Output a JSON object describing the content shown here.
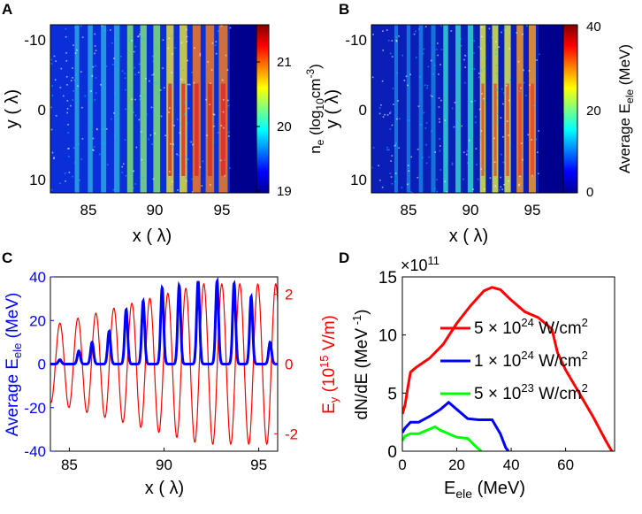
{
  "panels": {
    "a": {
      "letter": "A",
      "xlabel": "x ( λ)",
      "ylabel": "y ( λ)",
      "xticks": [
        "85",
        "90",
        "95"
      ],
      "yticks": [
        "-10",
        "0",
        "10"
      ],
      "colorbar": {
        "ticks": [
          "19",
          "20",
          "21"
        ],
        "label_main": "n",
        "label_sub": "e",
        "label_rest": " (log",
        "label_sub2": "10",
        "label_unit": "cm",
        "label_sup": "-3",
        "label_end": ")"
      }
    },
    "b": {
      "letter": "B",
      "xlabel": "x ( λ)",
      "ylabel": "y ( λ)",
      "xticks": [
        "85",
        "90",
        "95"
      ],
      "yticks": [
        "-10",
        "0",
        "10"
      ],
      "colorbar": {
        "ticks": [
          "0",
          "20",
          "40"
        ],
        "label_main": "Average E",
        "label_sub": "ele",
        "label_end": " (MeV)"
      }
    },
    "c": {
      "letter": "C",
      "xlabel": "x ( λ)",
      "ylabel_left_main": "Average E",
      "ylabel_left_sub": "ele",
      "ylabel_left_end": " (MeV)",
      "ylabel_right_main": "E",
      "ylabel_right_sub": "y",
      "ylabel_right_mid": " (10",
      "ylabel_right_sup": "15",
      "ylabel_right_end": " V/m)",
      "left_color": "#0000ff",
      "right_color": "#ff0000"
    },
    "d": {
      "letter": "D",
      "xlabel_main": "E",
      "xlabel_sub": "ele",
      "xlabel_end": " (MeV)",
      "ylabel_main": "dN/dE (MeV",
      "ylabel_sup": " -1",
      "ylabel_end": ")",
      "exponent_base": "×10",
      "exponent_power": "11"
    }
  },
  "chart_data": [
    {
      "id": "A",
      "type": "heatmap",
      "title": "",
      "xlabel": "x (λ)",
      "ylabel": "y (λ)",
      "xlim": [
        82,
        97.5
      ],
      "ylim": [
        -13,
        13
      ],
      "colorbar": {
        "label": "n_e (log10 cm^-3)",
        "range": [
          19,
          21.5
        ],
        "colormap": "jet"
      },
      "description_values": {
        "stripe_x": [
          84,
          85,
          86,
          87,
          88,
          89,
          90,
          91,
          92,
          93,
          94,
          95
        ],
        "front_x": 95.5
      }
    },
    {
      "id": "B",
      "type": "heatmap",
      "title": "",
      "xlabel": "x (λ)",
      "ylabel": "y (λ)",
      "xlim": [
        82,
        97.5
      ],
      "ylim": [
        -13,
        13
      ],
      "colorbar": {
        "label": "Average E_ele (MeV)",
        "range": [
          0,
          40
        ],
        "colormap": "jet"
      },
      "description_values": {
        "stripe_x": [
          84,
          85,
          86,
          87,
          88,
          89,
          90,
          91,
          92,
          93,
          94,
          95
        ],
        "front_x": 95.5
      }
    },
    {
      "id": "C",
      "type": "line",
      "xlabel": "x (λ)",
      "xlim": [
        84,
        96
      ],
      "xticks": [
        85,
        90,
        95
      ],
      "left_axis": {
        "label": "Average E_ele (MeV)",
        "ylim": [
          -40,
          40
        ],
        "ticks": [
          -40,
          -20,
          0,
          20,
          40
        ]
      },
      "right_axis": {
        "label": "E_y (10^15 V/m)",
        "ylim": [
          -2.5,
          2.5
        ],
        "ticks": [
          -2,
          0,
          2
        ]
      },
      "series": [
        {
          "name": "Average E_ele",
          "axis": "left",
          "color": "#0000ff",
          "peaks_x": [
            84.5,
            85.5,
            86.2,
            87.1,
            88.0,
            88.9,
            89.9,
            90.8,
            91.8,
            92.8,
            93.7,
            94.6,
            95.6
          ],
          "peaks_y": [
            2,
            6,
            10,
            15,
            25,
            29,
            35,
            36,
            38,
            38,
            37,
            31,
            10
          ]
        },
        {
          "name": "E_y",
          "axis": "right",
          "color": "#ff0000",
          "period": 0.95,
          "max_amplitude": 2.3,
          "note": "oscillating field, amplitude grows with x"
        }
      ]
    },
    {
      "id": "D",
      "type": "line",
      "xlabel": "E_ele (MeV)",
      "ylabel": "dN/dE (MeV^-1)",
      "xlim": [
        0,
        78
      ],
      "ylim": [
        0,
        15
      ],
      "y_scale": "×10^11",
      "xticks": [
        0,
        20,
        40,
        60
      ],
      "yticks": [
        0,
        5,
        10,
        15
      ],
      "series": [
        {
          "name": "5 × 10^24 W/cm^2",
          "label_main": "5 × 10",
          "label_sup": "24",
          "label_end": " W/cm",
          "label_sup2": "2",
          "color": "#ff0000",
          "x": [
            0,
            1,
            2,
            3,
            5,
            10,
            15,
            20,
            25,
            30,
            33,
            36,
            40,
            45,
            50,
            55,
            57,
            60,
            65,
            70,
            75,
            77
          ],
          "y": [
            3.2,
            4.0,
            5.5,
            6.8,
            7.2,
            8.0,
            9.2,
            11.0,
            12.5,
            13.8,
            14.1,
            13.9,
            13.0,
            12.0,
            11.5,
            10.5,
            8.5,
            7.0,
            5.0,
            3.0,
            0.8,
            0
          ]
        },
        {
          "name": "1 × 10^24 W/cm^2",
          "label_main": "1 × 10",
          "label_sup": "24",
          "label_end": " W/cm",
          "label_sup2": "2",
          "color": "#0000ff",
          "x": [
            0,
            1,
            3,
            6,
            10,
            14,
            17,
            20,
            24,
            28,
            33,
            36,
            38,
            39
          ],
          "y": [
            1.6,
            2.0,
            2.5,
            2.5,
            3.0,
            3.6,
            4.2,
            3.6,
            2.8,
            2.7,
            2.7,
            1.5,
            0.3,
            0
          ]
        },
        {
          "name": "5 × 10^23 W/cm^2",
          "label_main": "5 × 10",
          "label_sup": "23",
          "label_end": " W/cm",
          "label_sup2": "2",
          "color": "#00ff00",
          "x": [
            0,
            1,
            3,
            6,
            9,
            12,
            14,
            17,
            20,
            24,
            27,
            29
          ],
          "y": [
            0.9,
            1.3,
            1.5,
            1.5,
            1.8,
            2.1,
            1.8,
            1.5,
            1.2,
            1.1,
            0.4,
            0
          ]
        }
      ]
    }
  ]
}
